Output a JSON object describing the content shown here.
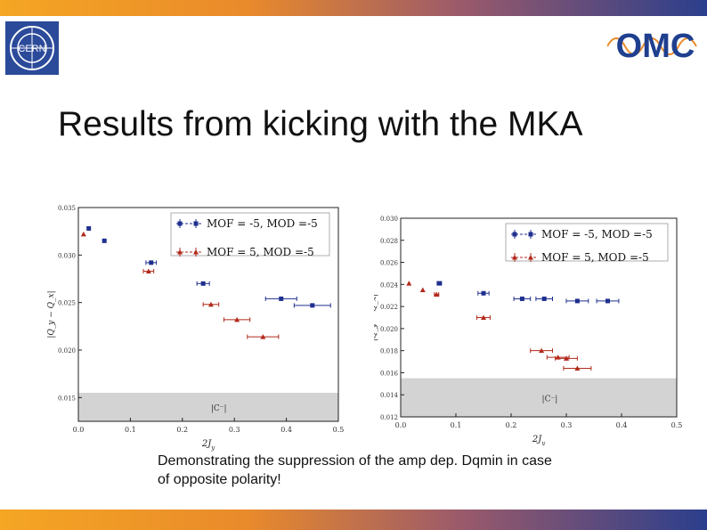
{
  "slide": {
    "title": "Results from kicking with the MKA",
    "caption": "Demonstrating the suppression of the amp dep. Dqmin in case of opposite polarity!",
    "logos": {
      "left_text": "CERN",
      "right_text": "OMC"
    },
    "colors": {
      "bar_start": "#f5a623",
      "bar_end": "#2b3f8c",
      "series1": "#1f2f8f",
      "series2": "#b22a1c",
      "band": "#d3d3d3"
    }
  },
  "chart_data": [
    {
      "type": "scatter",
      "title": "",
      "xlabel": "2J_y",
      "ylabel": "|Q_y − Q_x|",
      "xlim": [
        0.0,
        0.5
      ],
      "ylim": [
        0.0125,
        0.035
      ],
      "xticks": [
        "0.0",
        "0.1",
        "0.2",
        "0.3",
        "0.4",
        "0.5"
      ],
      "yticks": [
        "0.015",
        "0.020",
        "0.025",
        "0.030",
        "0.035"
      ],
      "band": {
        "y_max": 0.0155,
        "label": "|C⁻|"
      },
      "legend_position": "top-right",
      "series": [
        {
          "name": "MOF = -5, MOD =-5",
          "marker": "square",
          "color": "#1f2f8f",
          "points": [
            [
              0.02,
              0.0328,
              0
            ],
            [
              0.05,
              0.0315,
              0
            ],
            [
              0.14,
              0.0292,
              0.01
            ],
            [
              0.24,
              0.027,
              0.012
            ],
            [
              0.39,
              0.0254,
              0.03
            ],
            [
              0.45,
              0.0247,
              0.035
            ]
          ]
        },
        {
          "name": "MOF = 5, MOD =-5",
          "marker": "triangle",
          "color": "#b22a1c",
          "points": [
            [
              0.01,
              0.0322,
              0
            ],
            [
              0.135,
              0.0283,
              0.01
            ],
            [
              0.255,
              0.0248,
              0.015
            ],
            [
              0.305,
              0.0232,
              0.025
            ],
            [
              0.355,
              0.0214,
              0.03
            ]
          ]
        }
      ]
    },
    {
      "type": "scatter",
      "title": "",
      "xlabel": "2J_y",
      "ylabel": "|Q_y − Q_x|",
      "xlim": [
        0.0,
        0.5
      ],
      "ylim": [
        0.012,
        0.03
      ],
      "xticks": [
        "0.0",
        "0.1",
        "0.2",
        "0.3",
        "0.4",
        "0.5"
      ],
      "yticks": [
        "0.012",
        "0.014",
        "0.016",
        "0.018",
        "0.020",
        "0.022",
        "0.024",
        "0.026",
        "0.028",
        "0.030"
      ],
      "band": {
        "y_max": 0.0155,
        "label": "|C⁻|"
      },
      "legend_position": "top-right",
      "series": [
        {
          "name": "MOF = -5, MOD =-5",
          "marker": "square",
          "color": "#1f2f8f",
          "points": [
            [
              0.07,
              0.0241,
              0.004
            ],
            [
              0.15,
              0.0232,
              0.01
            ],
            [
              0.22,
              0.0227,
              0.015
            ],
            [
              0.26,
              0.0227,
              0.015
            ],
            [
              0.32,
              0.0225,
              0.02
            ],
            [
              0.375,
              0.0225,
              0.02
            ]
          ]
        },
        {
          "name": "MOF = 5, MOD =-5",
          "marker": "triangle",
          "color": "#b22a1c",
          "points": [
            [
              0.015,
              0.0241,
              0
            ],
            [
              0.04,
              0.0235,
              0
            ],
            [
              0.065,
              0.0231,
              0.004
            ],
            [
              0.15,
              0.021,
              0.012
            ],
            [
              0.255,
              0.018,
              0.02
            ],
            [
              0.285,
              0.0174,
              0.02
            ],
            [
              0.3,
              0.0173,
              0.02
            ],
            [
              0.32,
              0.0164,
              0.025
            ]
          ]
        }
      ]
    }
  ]
}
